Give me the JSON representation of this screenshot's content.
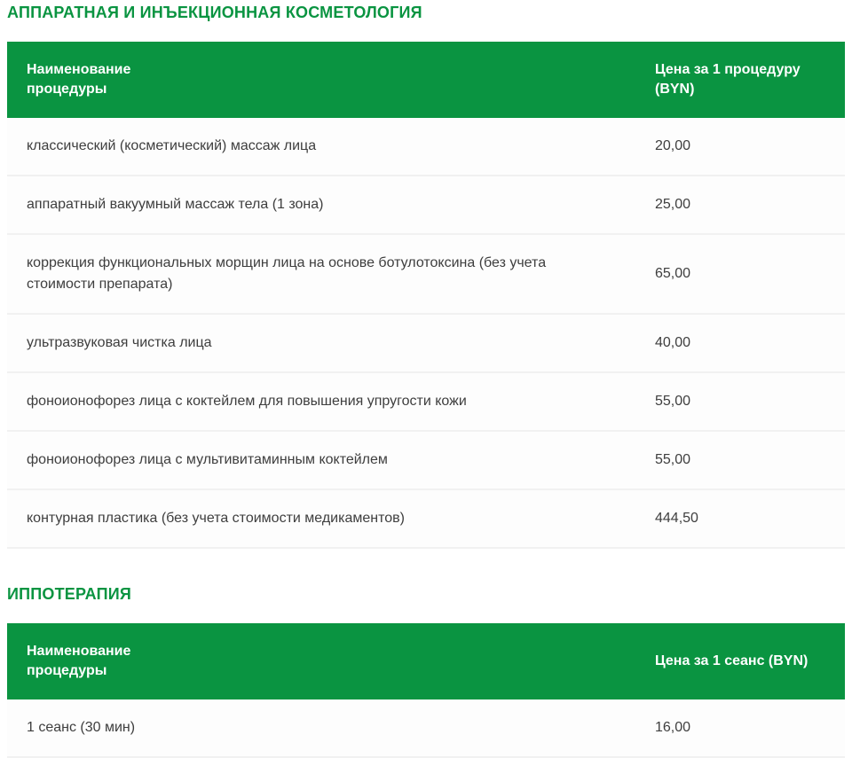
{
  "page": {
    "accent_green": "#0a9441",
    "row_background": "#fdfdfd",
    "text_color": "#3e3e3e"
  },
  "sections": [
    {
      "heading": "АППАРАТНАЯ И ИНЪЕКЦИОННАЯ КОСМЕТОЛОГИЯ",
      "table": {
        "columns": [
          "Наименование процедуры",
          "Цена за 1 процедуру (BYN)"
        ],
        "rows": [
          [
            "классический (косметический) массаж лица",
            "20,00"
          ],
          [
            "аппаратный вакуумный массаж тела (1 зона)",
            "25,00"
          ],
          [
            "коррекция функциональных морщин лица на основе ботулотоксина (без учета стоимости препарата)",
            "65,00"
          ],
          [
            "ультразвуковая чистка лица",
            "40,00"
          ],
          [
            "фоноионофорез лица с коктейлем для повышения упругости кожи",
            "55,00"
          ],
          [
            "фоноионофорез лица с мультивитаминным коктейлем",
            "55,00"
          ],
          [
            "контурная пластика (без учета стоимости медикаментов)",
            "444,50"
          ]
        ]
      }
    },
    {
      "heading": "ИППОТЕРАПИЯ",
      "table": {
        "columns": [
          "Наименование процедуры",
          "Цена за 1 сеанс (BYN)"
        ],
        "rows": [
          [
            "1 сеанс (30 мин)",
            "16,00"
          ]
        ]
      }
    }
  ]
}
